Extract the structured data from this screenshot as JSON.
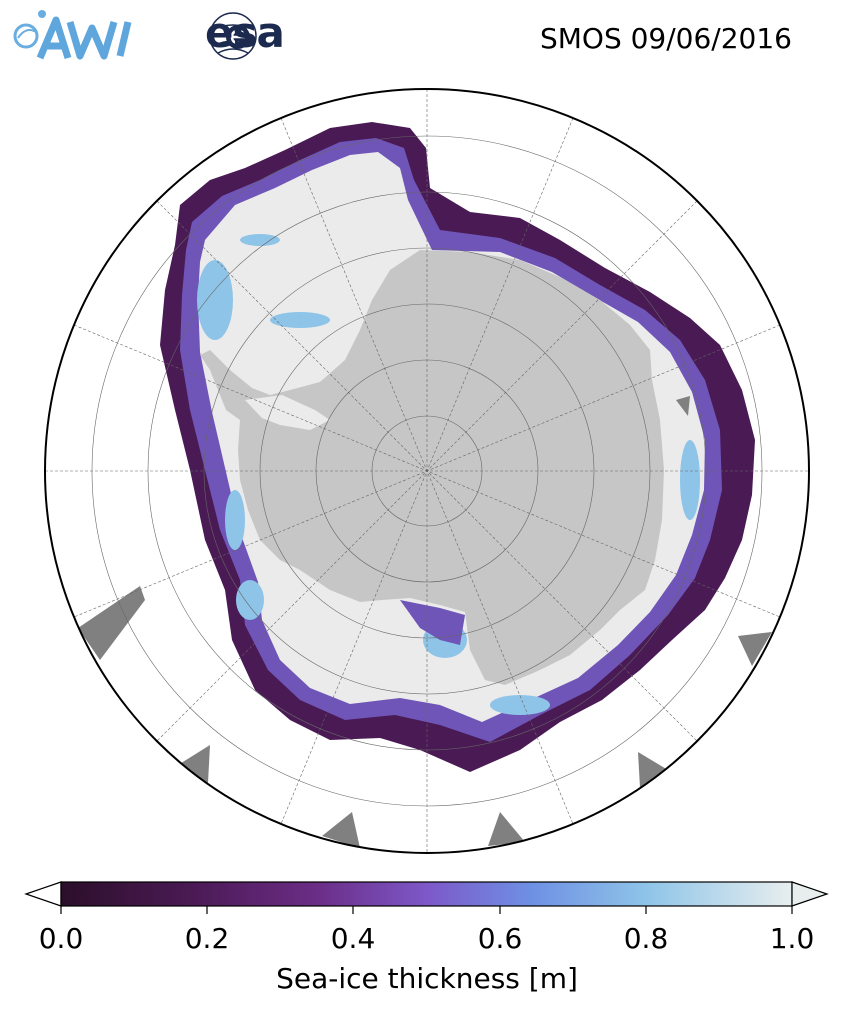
{
  "header": {
    "logos": [
      {
        "name": "AWI",
        "icon": "awi-logo"
      },
      {
        "name": "esa",
        "icon": "esa-logo"
      }
    ],
    "esa_text": "esa",
    "title": "SMOS 09/06/2016"
  },
  "map": {
    "projection": "south-polar-stereographic",
    "colors": {
      "land": "#c6c6c6",
      "thick_ice": "#ebebeb",
      "missing_data": "#808080",
      "ocean": "#ffffff"
    },
    "graticule": "dashed gray lines, 45 degree meridians, concentric latitude rings"
  },
  "colorbar": {
    "label": "Sea-ice thickness [m]",
    "ticks": [
      "0.0",
      "0.2",
      "0.4",
      "0.6",
      "0.8",
      "1.0"
    ],
    "range": [
      0.0,
      1.0
    ],
    "extend": "both",
    "colormap": [
      "#2b0f2a",
      "#4b1a55",
      "#6b2d86",
      "#7d58c8",
      "#6e8fe4",
      "#8ec4e8",
      "#e8eeee"
    ]
  }
}
